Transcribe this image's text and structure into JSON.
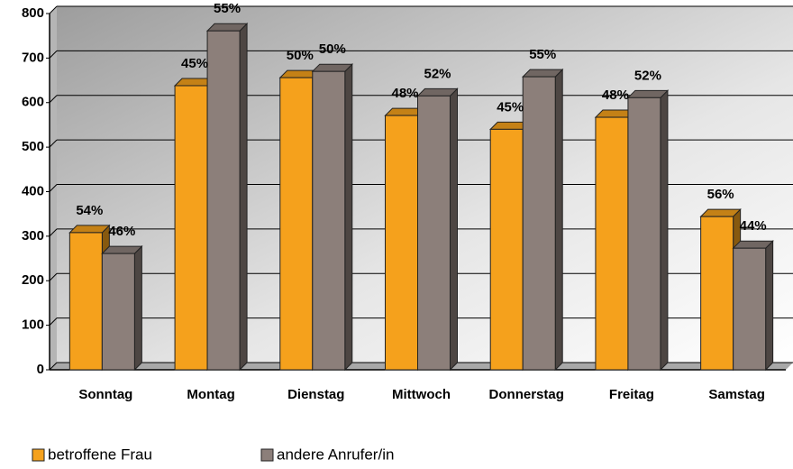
{
  "chart_data": {
    "type": "bar3d",
    "categories": [
      "Sonntag",
      "Montag",
      "Dienstag",
      "Mittwoch",
      "Donnerstag",
      "Freitag",
      "Samstag"
    ],
    "series": [
      {
        "name": "betroffene Frau",
        "color": "#f5a11c",
        "values": [
          308,
          638,
          656,
          571,
          540,
          567,
          344
        ],
        "labels": [
          "54%",
          "45%",
          "50%",
          "48%",
          "45%",
          "48%",
          "56%"
        ]
      },
      {
        "name": "andere Anrufer/in",
        "color": "#8c7f7a",
        "values": [
          261,
          761,
          670,
          615,
          658,
          611,
          273
        ],
        "labels": [
          "46%",
          "55%",
          "50%",
          "52%",
          "55%",
          "52%",
          "44%"
        ]
      }
    ],
    "ylim": [
      0,
      800
    ],
    "yticks": [
      0,
      100,
      200,
      300,
      400,
      500,
      600,
      700,
      800
    ],
    "grid": true,
    "legend": "bottom"
  }
}
